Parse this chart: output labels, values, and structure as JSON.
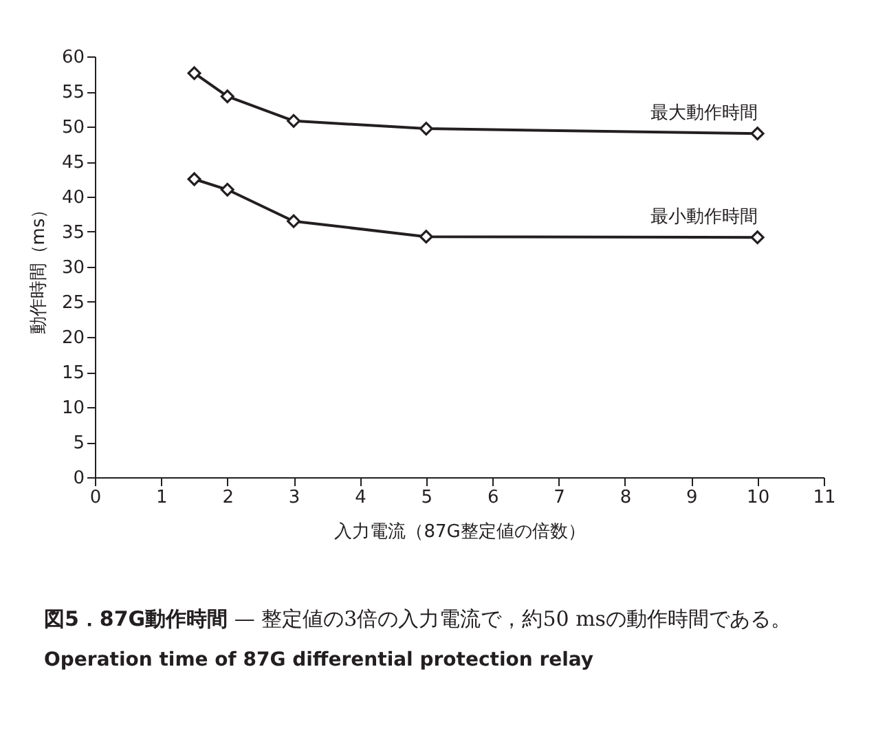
{
  "chart_data": {
    "type": "line",
    "title": "図5．87G動作時間",
    "subtitle": "— 整定値の3倍の入力電流で，約50 msの動作時間である。",
    "annotations": [
      "Operation time of 87G differential protection relay"
    ],
    "xlabel": "入力電流（87G整定値の倍数）",
    "ylabel": "動作時間（ms）",
    "x": [
      1.5,
      2,
      3,
      5,
      10
    ],
    "series": [
      {
        "name": "最大動作時間",
        "color": "#231f20",
        "values": [
          57.6,
          54.3,
          50.8,
          49.7,
          49.0
        ]
      },
      {
        "name": "最小動作時間",
        "color": "#231f20",
        "values": [
          42.5,
          41.0,
          36.5,
          34.3,
          34.2
        ]
      }
    ],
    "xlim": [
      0,
      11
    ],
    "xticks": [
      0,
      1,
      2,
      3,
      4,
      5,
      6,
      7,
      8,
      9,
      10,
      11
    ],
    "ylim": [
      0,
      60
    ],
    "yticks": [
      0,
      5,
      10,
      15,
      20,
      25,
      30,
      35,
      40,
      45,
      50,
      55,
      60
    ],
    "grid": false,
    "legend": false,
    "marker": "diamond",
    "line_style": "solid"
  }
}
